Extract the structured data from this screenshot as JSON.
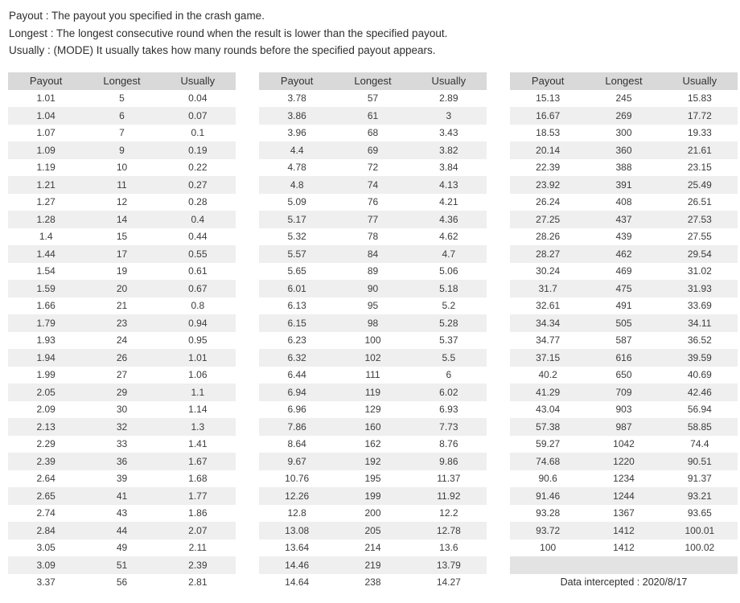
{
  "description_lines": [
    "Payout : The payout you specified in the crash game.",
    "Longest : The longest consecutive round when the result is lower than the specified payout.",
    "Usually : (MODE) It usually takes how many rounds before the specified payout appears."
  ],
  "columns": [
    "Payout",
    "Longest",
    "Usually"
  ],
  "colors": {
    "header_bg": "#d9d9d9",
    "alt_row_bg": "#efefef",
    "text": "#3c3c3c"
  },
  "tables": [
    {
      "rows": [
        [
          "1.01",
          "5",
          "0.04"
        ],
        [
          "1.04",
          "6",
          "0.07"
        ],
        [
          "1.07",
          "7",
          "0.1"
        ],
        [
          "1.09",
          "9",
          "0.19"
        ],
        [
          "1.19",
          "10",
          "0.22"
        ],
        [
          "1.21",
          "11",
          "0.27"
        ],
        [
          "1.27",
          "12",
          "0.28"
        ],
        [
          "1.28",
          "14",
          "0.4"
        ],
        [
          "1.4",
          "15",
          "0.44"
        ],
        [
          "1.44",
          "17",
          "0.55"
        ],
        [
          "1.54",
          "19",
          "0.61"
        ],
        [
          "1.59",
          "20",
          "0.67"
        ],
        [
          "1.66",
          "21",
          "0.8"
        ],
        [
          "1.79",
          "23",
          "0.94"
        ],
        [
          "1.93",
          "24",
          "0.95"
        ],
        [
          "1.94",
          "26",
          "1.01"
        ],
        [
          "1.99",
          "27",
          "1.06"
        ],
        [
          "2.05",
          "29",
          "1.1"
        ],
        [
          "2.09",
          "30",
          "1.14"
        ],
        [
          "2.13",
          "32",
          "1.3"
        ],
        [
          "2.29",
          "33",
          "1.41"
        ],
        [
          "2.39",
          "36",
          "1.67"
        ],
        [
          "2.64",
          "39",
          "1.68"
        ],
        [
          "2.65",
          "41",
          "1.77"
        ],
        [
          "2.74",
          "43",
          "1.86"
        ],
        [
          "2.84",
          "44",
          "2.07"
        ],
        [
          "3.05",
          "49",
          "2.11"
        ],
        [
          "3.09",
          "51",
          "2.39"
        ],
        [
          "3.37",
          "56",
          "2.81"
        ]
      ]
    },
    {
      "rows": [
        [
          "3.78",
          "57",
          "2.89"
        ],
        [
          "3.86",
          "61",
          "3"
        ],
        [
          "3.96",
          "68",
          "3.43"
        ],
        [
          "4.4",
          "69",
          "3.82"
        ],
        [
          "4.78",
          "72",
          "3.84"
        ],
        [
          "4.8",
          "74",
          "4.13"
        ],
        [
          "5.09",
          "76",
          "4.21"
        ],
        [
          "5.17",
          "77",
          "4.36"
        ],
        [
          "5.32",
          "78",
          "4.62"
        ],
        [
          "5.57",
          "84",
          "4.7"
        ],
        [
          "5.65",
          "89",
          "5.06"
        ],
        [
          "6.01",
          "90",
          "5.18"
        ],
        [
          "6.13",
          "95",
          "5.2"
        ],
        [
          "6.15",
          "98",
          "5.28"
        ],
        [
          "6.23",
          "100",
          "5.37"
        ],
        [
          "6.32",
          "102",
          "5.5"
        ],
        [
          "6.44",
          "111",
          "6"
        ],
        [
          "6.94",
          "119",
          "6.02"
        ],
        [
          "6.96",
          "129",
          "6.93"
        ],
        [
          "7.86",
          "160",
          "7.73"
        ],
        [
          "8.64",
          "162",
          "8.76"
        ],
        [
          "9.67",
          "192",
          "9.86"
        ],
        [
          "10.76",
          "195",
          "11.37"
        ],
        [
          "12.26",
          "199",
          "11.92"
        ],
        [
          "12.8",
          "200",
          "12.2"
        ],
        [
          "13.08",
          "205",
          "12.78"
        ],
        [
          "13.64",
          "214",
          "13.6"
        ],
        [
          "14.46",
          "219",
          "13.79"
        ],
        [
          "14.64",
          "238",
          "14.27"
        ]
      ]
    },
    {
      "rows": [
        [
          "15.13",
          "245",
          "15.83"
        ],
        [
          "16.67",
          "269",
          "17.72"
        ],
        [
          "18.53",
          "300",
          "19.33"
        ],
        [
          "20.14",
          "360",
          "21.61"
        ],
        [
          "22.39",
          "388",
          "23.15"
        ],
        [
          "23.92",
          "391",
          "25.49"
        ],
        [
          "26.24",
          "408",
          "26.51"
        ],
        [
          "27.25",
          "437",
          "27.53"
        ],
        [
          "28.26",
          "439",
          "27.55"
        ],
        [
          "28.27",
          "462",
          "29.54"
        ],
        [
          "30.24",
          "469",
          "31.02"
        ],
        [
          "31.7",
          "475",
          "31.93"
        ],
        [
          "32.61",
          "491",
          "33.69"
        ],
        [
          "34.34",
          "505",
          "34.11"
        ],
        [
          "34.77",
          "587",
          "36.52"
        ],
        [
          "37.15",
          "616",
          "39.59"
        ],
        [
          "40.2",
          "650",
          "40.69"
        ],
        [
          "41.29",
          "709",
          "42.46"
        ],
        [
          "43.04",
          "903",
          "56.94"
        ],
        [
          "57.38",
          "987",
          "58.85"
        ],
        [
          "59.27",
          "1042",
          "74.4"
        ],
        [
          "74.68",
          "1220",
          "90.51"
        ],
        [
          "90.6",
          "1234",
          "91.37"
        ],
        [
          "91.46",
          "1244",
          "93.21"
        ],
        [
          "93.28",
          "1367",
          "93.65"
        ],
        [
          "93.72",
          "1412",
          "100.01"
        ],
        [
          "100",
          "1412",
          "100.02"
        ]
      ],
      "trailing_empty_row": true,
      "footer": "Data intercepted : 2020/8/17"
    }
  ]
}
